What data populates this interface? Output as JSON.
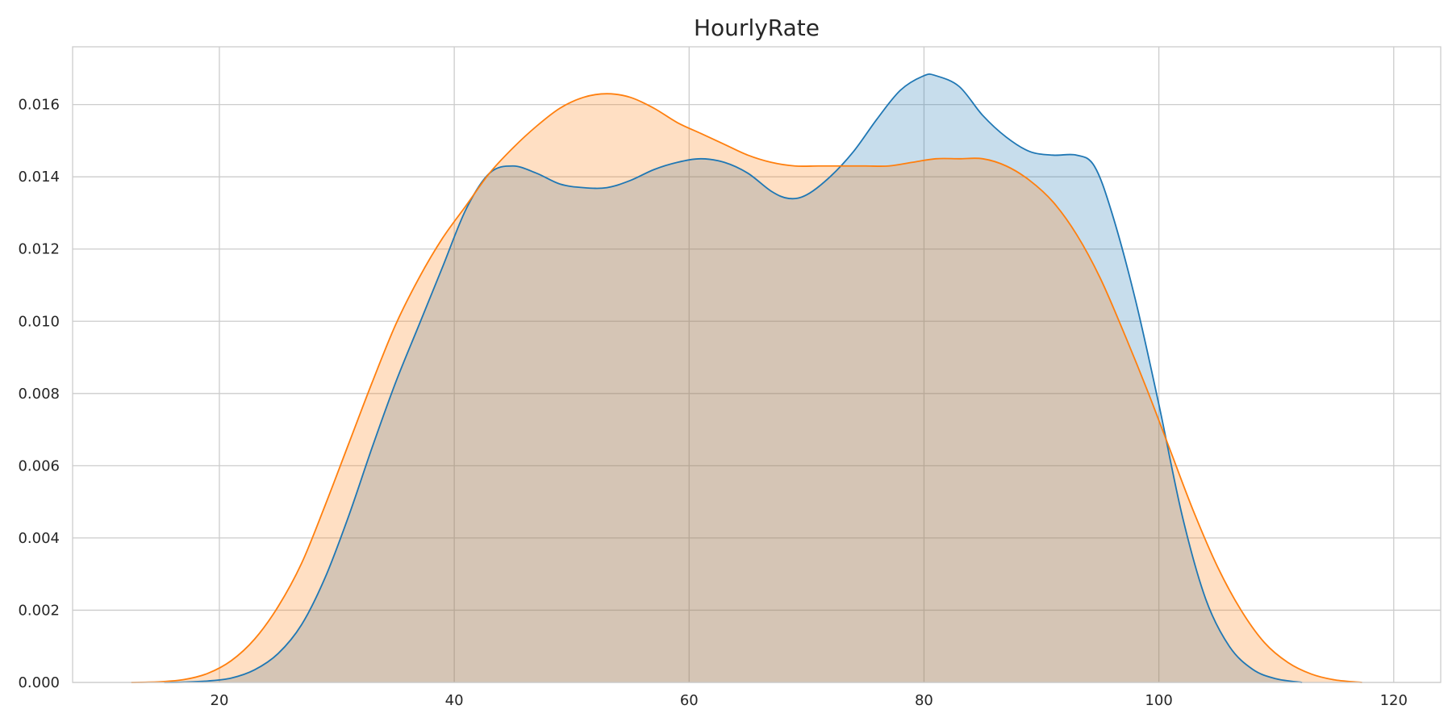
{
  "chart_data": {
    "type": "area",
    "title": "HourlyRate",
    "xlabel": "",
    "ylabel": "",
    "xlim": [
      7.5,
      124
    ],
    "ylim": [
      0,
      0.0176
    ],
    "x_ticks": [
      20,
      40,
      60,
      80,
      100,
      120
    ],
    "y_ticks": [
      0.0,
      0.002,
      0.004,
      0.006,
      0.008,
      0.01,
      0.012,
      0.014,
      0.016
    ],
    "y_tick_labels": [
      "0.000",
      "0.002",
      "0.004",
      "0.006",
      "0.008",
      "0.010",
      "0.012",
      "0.014",
      "0.016"
    ],
    "grid": true,
    "legend": "none",
    "series": [
      {
        "color": "#1f77b4",
        "fill": "#c5dbed",
        "points": [
          [
            15.3,
            0
          ],
          [
            17,
            1e-05
          ],
          [
            19,
            4e-05
          ],
          [
            21,
            0.00012
          ],
          [
            23,
            0.00035
          ],
          [
            25,
            0.0008
          ],
          [
            27,
            0.0016
          ],
          [
            29,
            0.0029
          ],
          [
            31,
            0.0046
          ],
          [
            33,
            0.0065
          ],
          [
            35,
            0.0083
          ],
          [
            37,
            0.0099
          ],
          [
            39,
            0.0115
          ],
          [
            41,
            0.0131
          ],
          [
            43,
            0.0141
          ],
          [
            45,
            0.0143
          ],
          [
            47,
            0.0141
          ],
          [
            49,
            0.0138
          ],
          [
            51,
            0.0137
          ],
          [
            53,
            0.0137
          ],
          [
            55,
            0.0139
          ],
          [
            57,
            0.0142
          ],
          [
            59,
            0.0144
          ],
          [
            61,
            0.0145
          ],
          [
            63,
            0.0144
          ],
          [
            65,
            0.0141
          ],
          [
            67,
            0.0136
          ],
          [
            68.5,
            0.0134
          ],
          [
            70,
            0.0135
          ],
          [
            72,
            0.014
          ],
          [
            74,
            0.0147
          ],
          [
            76,
            0.0156
          ],
          [
            78,
            0.0164
          ],
          [
            80,
            0.0168
          ],
          [
            81,
            0.0168
          ],
          [
            83,
            0.0165
          ],
          [
            85,
            0.0157
          ],
          [
            87,
            0.0151
          ],
          [
            89,
            0.0147
          ],
          [
            91,
            0.0146
          ],
          [
            93,
            0.0146
          ],
          [
            94.5,
            0.0143
          ],
          [
            96,
            0.013
          ],
          [
            98,
            0.0106
          ],
          [
            100,
            0.0077
          ],
          [
            102,
            0.0046
          ],
          [
            104,
            0.0023
          ],
          [
            106,
            0.001
          ],
          [
            108,
            0.00036
          ],
          [
            110,
            0.0001
          ],
          [
            112.2,
            0
          ]
        ]
      },
      {
        "color": "#ff7f0e",
        "fill": "#ffdbbf",
        "points": [
          [
            12.5,
            0
          ],
          [
            15,
            2e-05
          ],
          [
            17,
            8e-05
          ],
          [
            19,
            0.00025
          ],
          [
            21,
            0.0006
          ],
          [
            23,
            0.0012
          ],
          [
            25,
            0.0021
          ],
          [
            27,
            0.0033
          ],
          [
            29,
            0.0049
          ],
          [
            31,
            0.0066
          ],
          [
            33,
            0.0083
          ],
          [
            35,
            0.0099
          ],
          [
            37,
            0.0112
          ],
          [
            39,
            0.0123
          ],
          [
            41,
            0.0132
          ],
          [
            43,
            0.0141
          ],
          [
            45,
            0.0148
          ],
          [
            47,
            0.0154
          ],
          [
            49,
            0.0159
          ],
          [
            51,
            0.0162
          ],
          [
            53,
            0.0163
          ],
          [
            55,
            0.0162
          ],
          [
            57,
            0.0159
          ],
          [
            59,
            0.0155
          ],
          [
            61,
            0.0152
          ],
          [
            63,
            0.0149
          ],
          [
            65,
            0.0146
          ],
          [
            67,
            0.0144
          ],
          [
            69,
            0.0143
          ],
          [
            71,
            0.0143
          ],
          [
            73,
            0.0143
          ],
          [
            75,
            0.0143
          ],
          [
            77,
            0.0143
          ],
          [
            79,
            0.0144
          ],
          [
            81,
            0.0145
          ],
          [
            83,
            0.0145
          ],
          [
            85,
            0.0145
          ],
          [
            87,
            0.0143
          ],
          [
            89,
            0.0139
          ],
          [
            91,
            0.0133
          ],
          [
            93,
            0.0124
          ],
          [
            95,
            0.0112
          ],
          [
            97,
            0.0097
          ],
          [
            99,
            0.0081
          ],
          [
            101,
            0.0064
          ],
          [
            103,
            0.0047
          ],
          [
            105,
            0.0032
          ],
          [
            107,
            0.002
          ],
          [
            109,
            0.0011
          ],
          [
            111,
            0.00055
          ],
          [
            113,
            0.00023
          ],
          [
            115,
            7e-05
          ],
          [
            117.3,
            0
          ]
        ]
      }
    ]
  }
}
